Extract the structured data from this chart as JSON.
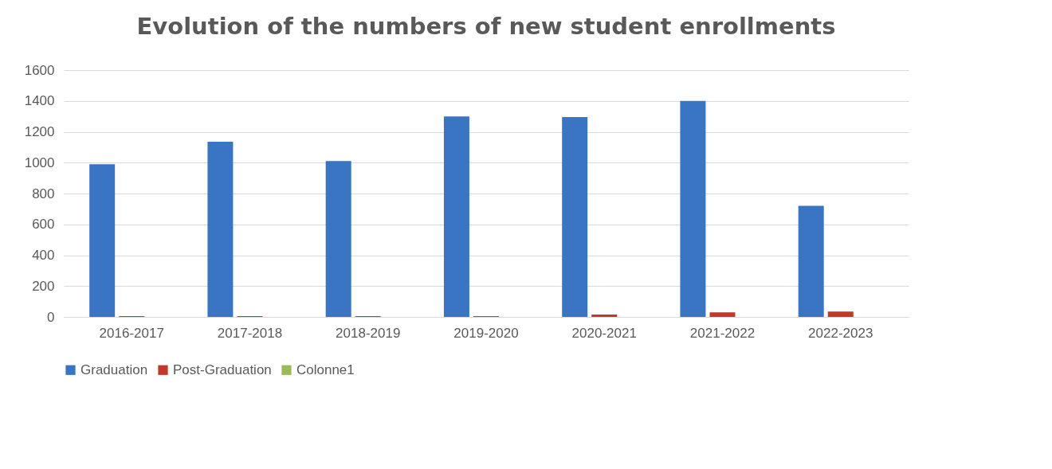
{
  "chart_data": {
    "type": "bar",
    "title": "Evolution of the numbers of new student enrollments",
    "categories": [
      "2016-2017",
      "2017-2018",
      "2018-2019",
      "2019-2020",
      "2020-2021",
      "2021-2022",
      "2022-2023"
    ],
    "series": [
      {
        "name": "Graduation",
        "color": "#3a75c4",
        "values": [
          990,
          1135,
          1010,
          1300,
          1295,
          1400,
          720
        ]
      },
      {
        "name": "Post-Graduation",
        "color": "#c0392b",
        "values": [
          5,
          5,
          5,
          5,
          15,
          30,
          35
        ]
      },
      {
        "name": "Colonne1",
        "color": "#9bbb59",
        "values": [
          null,
          null,
          null,
          null,
          null,
          null,
          null
        ]
      }
    ],
    "ylim": [
      0,
      1600
    ],
    "yticks": [
      0,
      200,
      400,
      600,
      800,
      1000,
      1200,
      1400,
      1600
    ],
    "grid": "y",
    "legend": "bottom"
  }
}
